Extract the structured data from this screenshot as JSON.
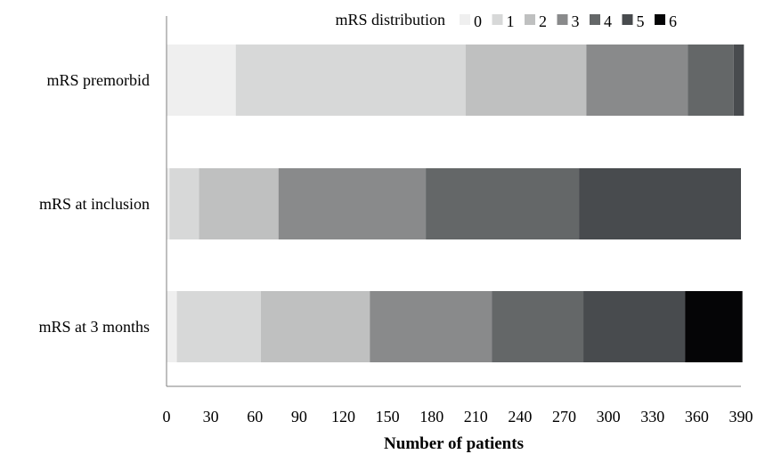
{
  "chart_data": {
    "type": "bar",
    "orientation": "horizontal",
    "stacked": true,
    "title": "",
    "xlabel": "Number of patients",
    "ylabel": "",
    "xlim": [
      0,
      390
    ],
    "xticks": [
      0,
      30,
      60,
      90,
      120,
      150,
      180,
      210,
      240,
      270,
      300,
      330,
      360,
      390
    ],
    "grid": false,
    "legend": {
      "title": "mRS distribution",
      "position": "top"
    },
    "categories": [
      "mRS premorbid",
      "mRS at inclusion",
      "mRS at 3 months"
    ],
    "series": [
      {
        "name": "0",
        "color": "#efefef",
        "values": [
          47,
          2,
          7
        ]
      },
      {
        "name": "1",
        "color": "#d7d8d8",
        "values": [
          156,
          20,
          57
        ]
      },
      {
        "name": "2",
        "color": "#bfc0c0",
        "values": [
          82,
          54,
          74
        ]
      },
      {
        "name": "3",
        "color": "#898a8b",
        "values": [
          69,
          100,
          83
        ]
      },
      {
        "name": "4",
        "color": "#646768",
        "values": [
          31,
          104,
          62
        ]
      },
      {
        "name": "5",
        "color": "#484b4e",
        "values": [
          7,
          110,
          69
        ]
      },
      {
        "name": "6",
        "color": "#050506",
        "values": [
          0,
          0,
          39
        ]
      }
    ]
  }
}
